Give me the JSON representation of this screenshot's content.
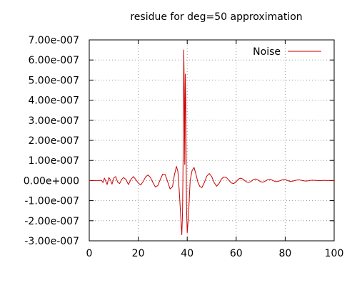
{
  "chart_data": {
    "type": "line",
    "title": "residue for deg=50 approximation",
    "xlabel": "",
    "ylabel": "",
    "xlim": [
      0,
      100
    ],
    "ylim": [
      -3e-07,
      7e-07
    ],
    "x_ticks": [
      0,
      20,
      40,
      60,
      80,
      100
    ],
    "x_tick_labels": [
      "0",
      "20",
      "40",
      "60",
      "80",
      "100"
    ],
    "y_ticks": [
      -3e-07,
      -2e-07,
      -1e-07,
      0,
      1e-07,
      2e-07,
      3e-07,
      4e-07,
      5e-07,
      6e-07,
      7e-07
    ],
    "y_tick_labels": [
      "-3.00e-007",
      "-2.00e-007",
      "-1.00e-007",
      "0.00e+000",
      "1.00e-007",
      "2.00e-007",
      "3.00e-007",
      "4.00e-007",
      "5.00e-007",
      "6.00e-007",
      "7.00e-007"
    ],
    "grid": true,
    "legend": {
      "position": "top-right"
    },
    "series": [
      {
        "name": "Noise",
        "color": "#cc0000",
        "points": [
          [
            0,
            0
          ],
          [
            2,
            0
          ],
          [
            4,
            0
          ],
          [
            5,
            1e-09
          ],
          [
            5.6,
            -1e-08
          ],
          [
            6.2,
            1.2e-08
          ],
          [
            6.8,
            -5e-09
          ],
          [
            7.3,
            -2e-08
          ],
          [
            8,
            1.5e-08
          ],
          [
            8.6,
            5e-09
          ],
          [
            9.3,
            -1.8e-08
          ],
          [
            10,
            1.2e-08
          ],
          [
            10.8,
            2e-08
          ],
          [
            11.6,
            -8e-09
          ],
          [
            12.4,
            -1.5e-08
          ],
          [
            13.2,
            5e-09
          ],
          [
            14,
            1.5e-08
          ],
          [
            15,
            5e-09
          ],
          [
            16,
            -2e-08
          ],
          [
            17,
            5e-09
          ],
          [
            18,
            2e-08
          ],
          [
            19,
            5e-09
          ],
          [
            20,
            -1.2e-08
          ],
          [
            21,
            -2.2e-08
          ],
          [
            22,
            -5e-09
          ],
          [
            23,
            1.8e-08
          ],
          [
            24,
            2.8e-08
          ],
          [
            25,
            1.5e-08
          ],
          [
            26,
            -1e-08
          ],
          [
            27,
            -3.2e-08
          ],
          [
            28,
            -2.5e-08
          ],
          [
            29,
            5e-09
          ],
          [
            30,
            3.2e-08
          ],
          [
            31,
            3e-08
          ],
          [
            32,
            -5e-09
          ],
          [
            33,
            -4.2e-08
          ],
          [
            34,
            -3e-08
          ],
          [
            34.8,
            3e-08
          ],
          [
            35.6,
            7e-08
          ],
          [
            36.2,
            4.5e-08
          ],
          [
            36.8,
            -6e-08
          ],
          [
            37.4,
            -1.9e-07
          ],
          [
            37.8,
            -2.7e-07
          ],
          [
            38.1,
            -1.5e-07
          ],
          [
            38.4,
            2e-07
          ],
          [
            38.6,
            6.5e-07
          ],
          [
            38.8,
            4.5e-07
          ],
          [
            39.0,
            8e-08
          ],
          [
            39.2,
            5.3e-07
          ],
          [
            39.4,
            4e-07
          ],
          [
            39.7,
            -1.2e-07
          ],
          [
            40.0,
            -2.6e-07
          ],
          [
            40.5,
            -1.8e-07
          ],
          [
            41.2,
            0.0
          ],
          [
            42.0,
            5e-08
          ],
          [
            42.8,
            6.5e-08
          ],
          [
            43.6,
            3e-08
          ],
          [
            44.4,
            -1e-08
          ],
          [
            45.2,
            -3e-08
          ],
          [
            46,
            -3.5e-08
          ],
          [
            47,
            -1e-08
          ],
          [
            48,
            2.2e-08
          ],
          [
            49,
            3.5e-08
          ],
          [
            50,
            2e-08
          ],
          [
            51,
            -1e-08
          ],
          [
            52,
            -2.8e-08
          ],
          [
            53,
            -1.5e-08
          ],
          [
            54,
            8e-09
          ],
          [
            55,
            1.8e-08
          ],
          [
            56,
            1.5e-08
          ],
          [
            57,
            2e-09
          ],
          [
            58,
            -1.2e-08
          ],
          [
            59,
            -1.5e-08
          ],
          [
            60,
            -5e-09
          ],
          [
            61,
            8e-09
          ],
          [
            62,
            1.2e-08
          ],
          [
            63,
            5e-09
          ],
          [
            64,
            -5e-09
          ],
          [
            65,
            -1e-08
          ],
          [
            66,
            -5e-09
          ],
          [
            67,
            5e-09
          ],
          [
            68,
            8e-09
          ],
          [
            69,
            2e-09
          ],
          [
            70,
            -6e-09
          ],
          [
            71,
            -8e-09
          ],
          [
            72,
            -2e-09
          ],
          [
            73,
            5e-09
          ],
          [
            74,
            6e-09
          ],
          [
            75,
            0.0
          ],
          [
            76,
            -5e-09
          ],
          [
            77,
            -5e-09
          ],
          [
            78,
            0.0
          ],
          [
            79,
            4e-09
          ],
          [
            80,
            5e-09
          ],
          [
            81,
            0.0
          ],
          [
            82,
            -4e-09
          ],
          [
            83,
            -3e-09
          ],
          [
            84,
            0.0
          ],
          [
            85,
            3e-09
          ],
          [
            86,
            3e-09
          ],
          [
            87,
            0.0
          ],
          [
            88,
            -2e-09
          ],
          [
            89,
            -2e-09
          ],
          [
            90,
            0.0
          ],
          [
            91,
            2e-09
          ],
          [
            92,
            1e-09
          ],
          [
            93,
            0.0
          ],
          [
            94,
            -1e-09
          ],
          [
            95,
            0.0
          ],
          [
            96,
            1e-09
          ],
          [
            97,
            0.0
          ],
          [
            98,
            0.0
          ],
          [
            99,
            0.0
          ],
          [
            100,
            0
          ]
        ]
      }
    ]
  }
}
